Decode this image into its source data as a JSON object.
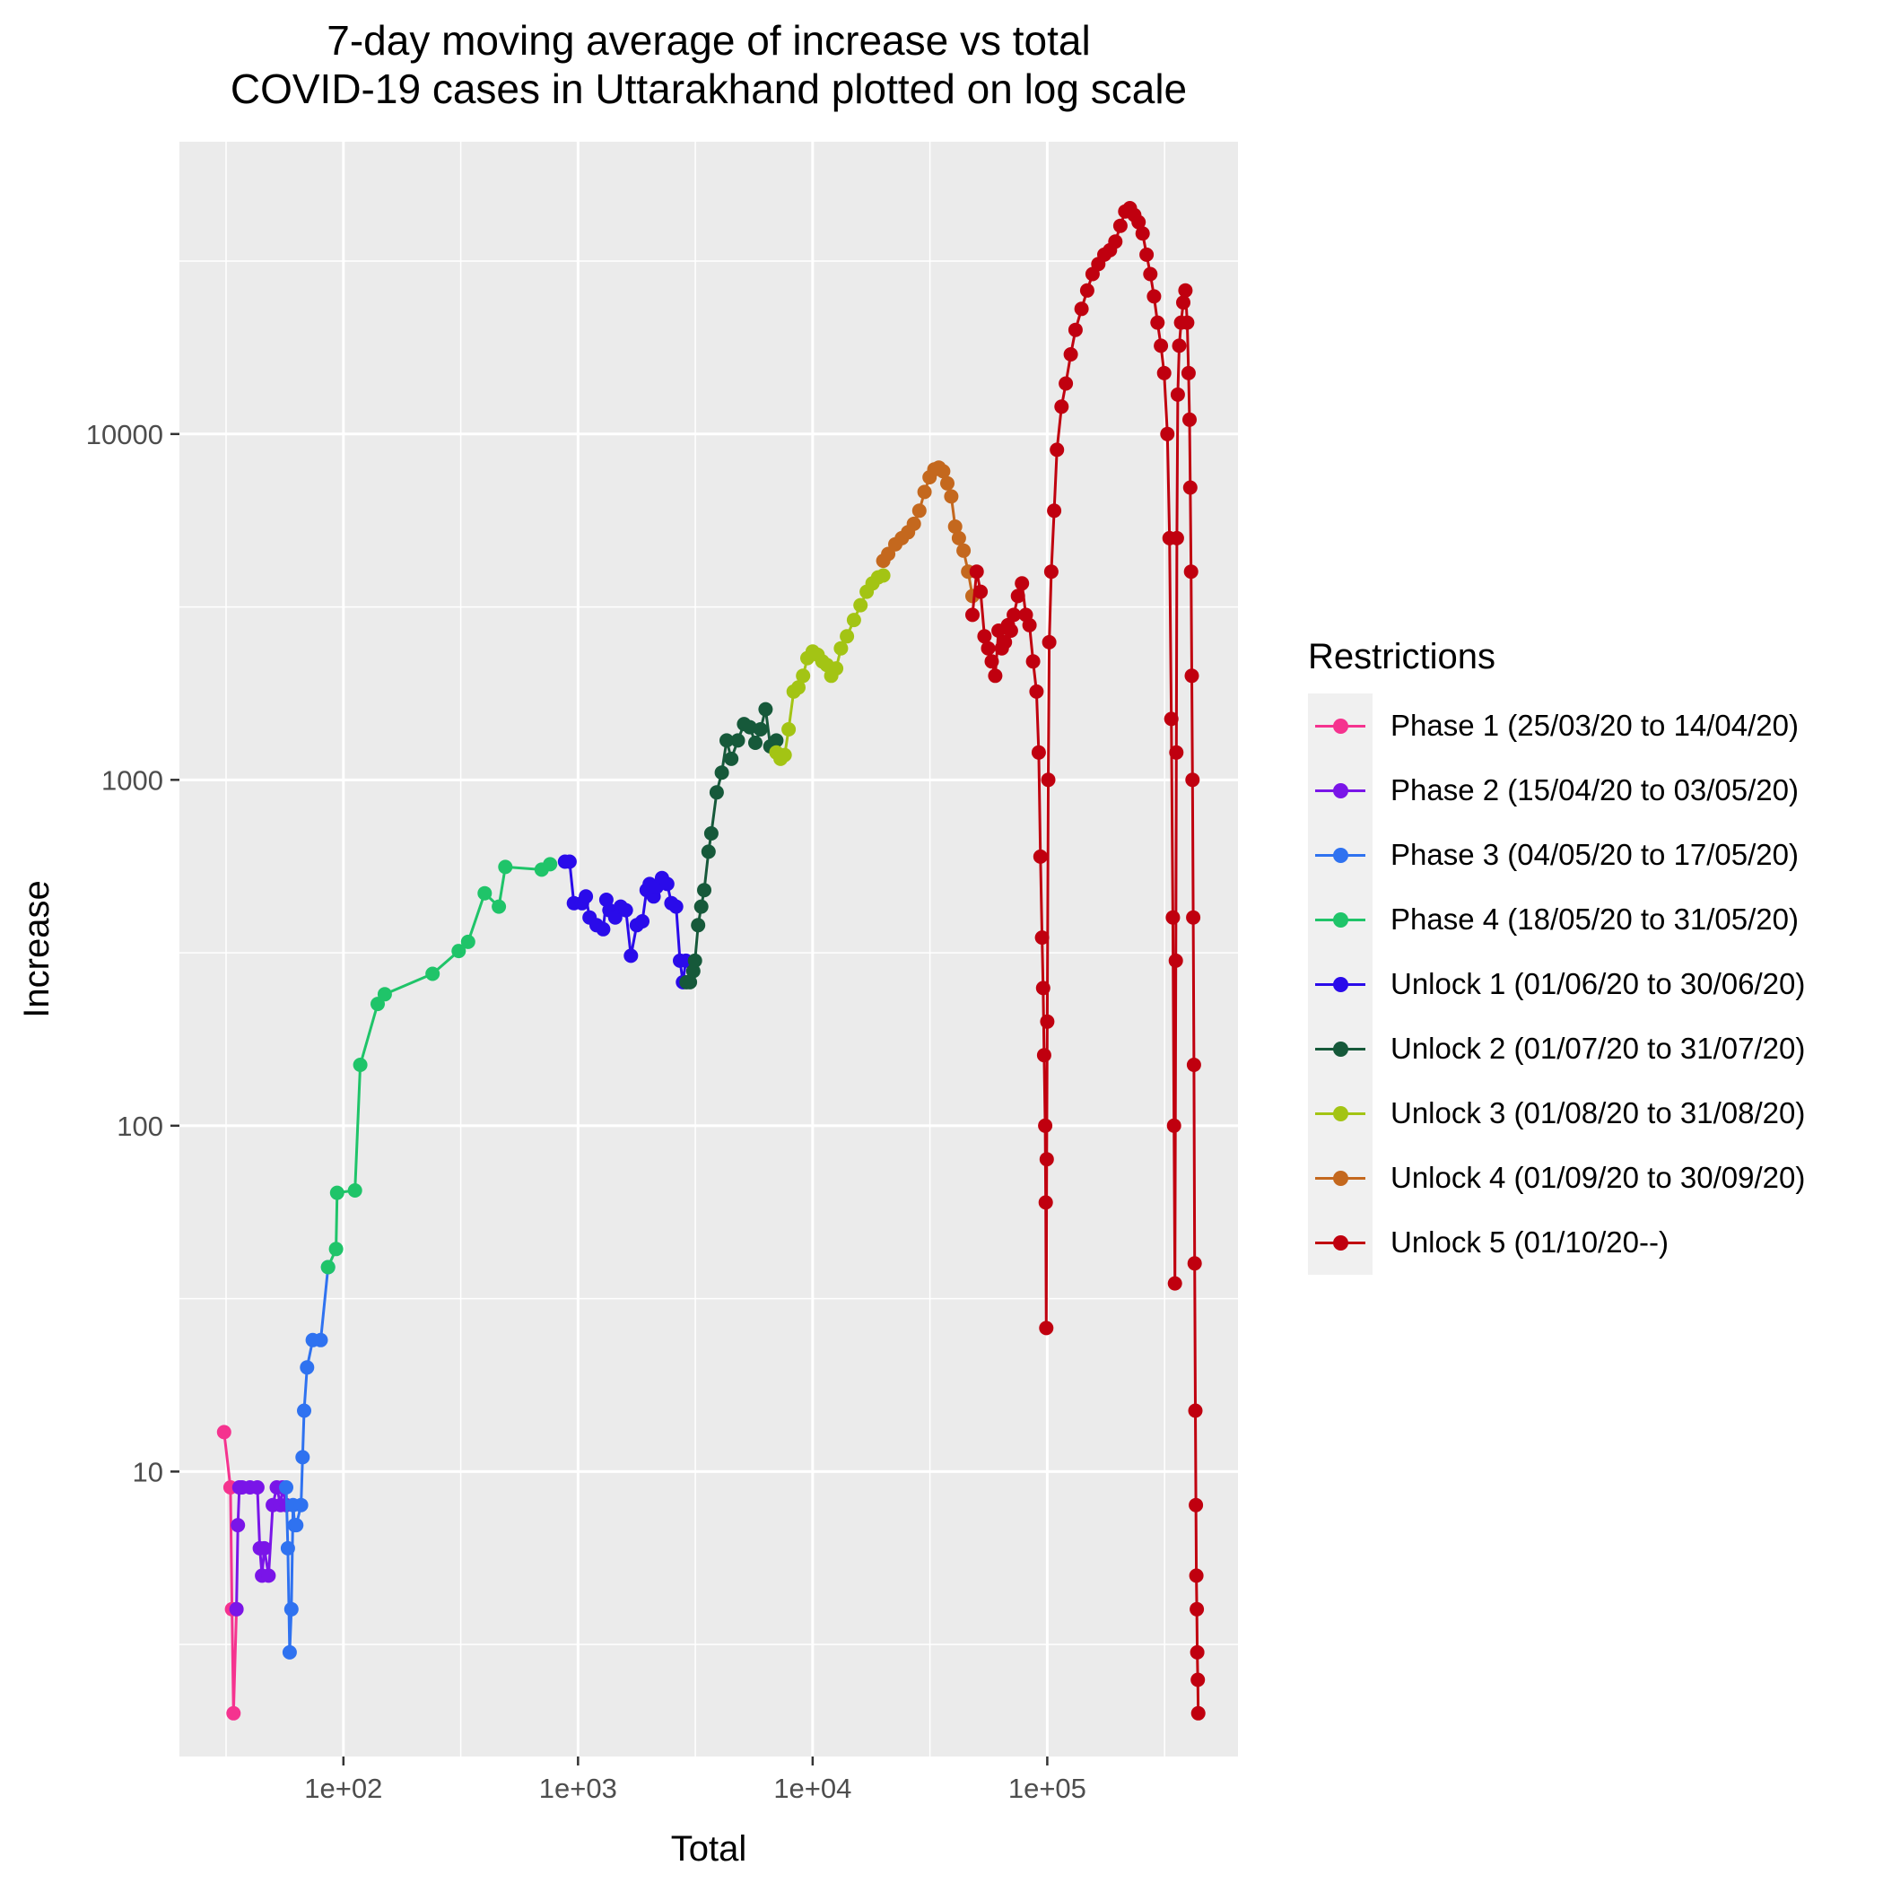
{
  "chart_data": {
    "type": "line",
    "title_lines": [
      "7-day moving average of increase vs total",
      "COVID-19 cases in Uttarakhand plotted on log scale"
    ],
    "xlabel": "Total",
    "ylabel": "Increase",
    "x_scale": "log10",
    "y_scale": "log10",
    "xlim": [
      20,
      650000
    ],
    "ylim": [
      1.5,
      70000
    ],
    "x_ticks": [
      {
        "value": 100,
        "label": "1e+02"
      },
      {
        "value": 1000,
        "label": "1e+03"
      },
      {
        "value": 10000,
        "label": "1e+04"
      },
      {
        "value": 100000,
        "label": "1e+05"
      }
    ],
    "y_ticks": [
      {
        "value": 10,
        "label": "10"
      },
      {
        "value": 100,
        "label": "100"
      },
      {
        "value": 1000,
        "label": "1000"
      },
      {
        "value": 10000,
        "label": "10000"
      }
    ],
    "grid": true,
    "legend_title": "Restrictions",
    "legend_position": "right",
    "series": [
      {
        "name": "Phase 1 (25/03/20 to 14/04/20)",
        "color": "#F5338F",
        "x": [
          31,
          33,
          33.5,
          34,
          35
        ],
        "y": [
          13,
          9,
          4,
          2,
          4
        ]
      },
      {
        "name": "Phase 2 (15/04/20 to 03/05/20)",
        "color": "#7A15E8",
        "x": [
          35,
          35.5,
          36,
          37,
          40,
          43,
          44,
          45,
          46,
          48,
          50,
          52,
          54,
          55,
          57
        ],
        "y": [
          4,
          7,
          9,
          9,
          9,
          9,
          6,
          5,
          6,
          5,
          8,
          9,
          8,
          9,
          8
        ]
      },
      {
        "name": "Phase 3 (04/05/20 to 17/05/20)",
        "color": "#2F72F0",
        "x": [
          57,
          58,
          59,
          60,
          61,
          62,
          63,
          66,
          67,
          68,
          70,
          74,
          80,
          86
        ],
        "y": [
          9,
          6,
          3,
          4,
          8,
          7,
          7,
          8,
          11,
          15,
          20,
          24,
          24,
          39
        ]
      },
      {
        "name": "Phase 4 (18/05/20 to 31/05/20)",
        "color": "#1FC469",
        "x": [
          86,
          93,
          94,
          112,
          118,
          140,
          150,
          240,
          310,
          340,
          400,
          460,
          490,
          700,
          760
        ],
        "y": [
          39,
          44,
          64,
          65,
          150,
          225,
          240,
          275,
          320,
          340,
          470,
          430,
          560,
          550,
          570
        ]
      },
      {
        "name": "Unlock 1 (01/06/20 to 30/06/20)",
        "color": "#2A0BEA",
        "x": [
          880,
          920,
          960,
          1040,
          1080,
          1120,
          1200,
          1280,
          1320,
          1360,
          1440,
          1520,
          1600,
          1680,
          1780,
          1880,
          1960,
          2020,
          2100,
          2160,
          2280,
          2400,
          2500,
          2620,
          2720,
          2800,
          2880
        ],
        "y": [
          580,
          580,
          440,
          440,
          460,
          400,
          380,
          370,
          450,
          420,
          400,
          430,
          420,
          310,
          380,
          390,
          480,
          500,
          460,
          490,
          520,
          500,
          440,
          430,
          300,
          260,
          300
        ]
      },
      {
        "name": "Unlock 2 (01/07/20 to 31/07/20)",
        "color": "#16593A",
        "x": [
          2900,
          3000,
          3100,
          3150,
          3250,
          3350,
          3450,
          3600,
          3700,
          3900,
          4100,
          4300,
          4500,
          4800,
          5100,
          5400,
          5700,
          6000,
          6300,
          6600,
          7000
        ],
        "y": [
          260,
          260,
          280,
          300,
          380,
          430,
          480,
          620,
          700,
          920,
          1050,
          1300,
          1150,
          1300,
          1450,
          1420,
          1280,
          1400,
          1600,
          1250,
          1300
        ]
      },
      {
        "name": "Unlock 3 (01/08/20 to 31/08/20)",
        "color": "#A3C414",
        "x": [
          7000,
          7300,
          7600,
          7900,
          8300,
          8700,
          9100,
          9500,
          10000,
          10500,
          11000,
          11500,
          12000,
          12600,
          13200,
          14000,
          15000,
          16000,
          17000,
          18000,
          19000,
          20000
        ],
        "y": [
          1200,
          1150,
          1180,
          1400,
          1800,
          1850,
          2000,
          2250,
          2350,
          2300,
          2200,
          2150,
          2000,
          2100,
          2400,
          2600,
          2900,
          3200,
          3500,
          3700,
          3850,
          3900
        ]
      },
      {
        "name": "Unlock 4 (01/09/20 to 30/09/20)",
        "color": "#C4681E",
        "x": [
          20000,
          21000,
          22500,
          24000,
          25500,
          27000,
          28500,
          30000,
          31500,
          33000,
          34500,
          36000,
          37500,
          39000,
          40500,
          42000,
          44000,
          46000,
          48000
        ],
        "y": [
          4300,
          4500,
          4800,
          5000,
          5200,
          5500,
          6000,
          6800,
          7500,
          7900,
          8000,
          7800,
          7200,
          6600,
          5400,
          5000,
          4600,
          4000,
          3400
        ]
      },
      {
        "name": "Unlock 5 (01/10/20--)",
        "color": "#C0000F",
        "x": [
          48000,
          50000,
          52000,
          54000,
          56000,
          58000,
          60000,
          62000,
          64000,
          66000,
          68000,
          70000,
          72000,
          75000,
          78000,
          81000,
          84000,
          87000,
          90000,
          92000,
          93500,
          95000,
          96000,
          97000,
          98000,
          98500,
          99000,
          99500,
          100000,
          101000,
          102000,
          104000,
          107000,
          110000,
          115000,
          120000,
          126000,
          132000,
          140000,
          148000,
          156000,
          165000,
          175000,
          185000,
          195000,
          205000,
          215000,
          225000,
          235000,
          245000,
          255000,
          265000,
          275000,
          285000,
          295000,
          305000,
          315000,
          325000,
          332000,
          338000,
          343000,
          347000,
          350000,
          353000,
          355000,
          357000,
          360000,
          365000,
          372000,
          380000,
          388000,
          395000,
          400000,
          404000,
          407000,
          410000,
          413000,
          416000,
          419000,
          422000,
          425000,
          428000,
          430000,
          432000,
          434000,
          436000,
          438000,
          440000
        ],
        "y": [
          3000,
          4000,
          3500,
          2600,
          2400,
          2200,
          2000,
          2700,
          2400,
          2500,
          2800,
          2700,
          3000,
          3400,
          3700,
          3000,
          2800,
          2200,
          1800,
          1200,
          600,
          350,
          250,
          160,
          100,
          60,
          26,
          80,
          200,
          1000,
          2500,
          4000,
          6000,
          9000,
          12000,
          14000,
          17000,
          20000,
          23000,
          26000,
          29000,
          31000,
          33000,
          34000,
          36000,
          40000,
          44000,
          45000,
          43000,
          41000,
          38000,
          33000,
          29000,
          25000,
          21000,
          18000,
          15000,
          10000,
          5000,
          1500,
          400,
          100,
          35,
          300,
          1200,
          5000,
          13000,
          18000,
          21000,
          24000,
          26000,
          21000,
          15000,
          11000,
          7000,
          4000,
          2000,
          1000,
          400,
          150,
          40,
          15,
          8,
          5,
          4,
          3,
          2.5,
          2
        ]
      }
    ]
  }
}
